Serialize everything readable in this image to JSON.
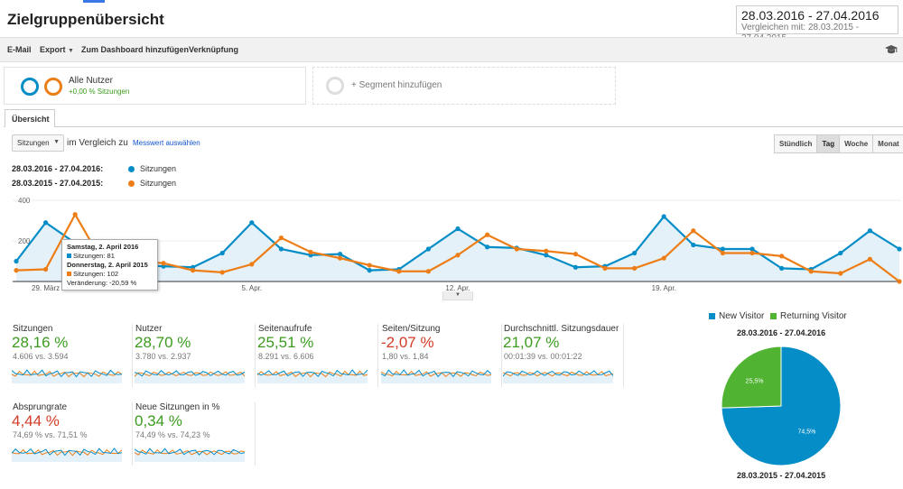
{
  "page": {
    "title": "Zielgruppenübersicht",
    "date_range": "28.03.2016 - 27.04.2016",
    "compare_prefix": "Vergleichen mit:",
    "compare_range": "28.03.2015 - 27.04.2015"
  },
  "toolbar": {
    "email": "E-Mail",
    "export": "Export",
    "dashboard": "Zum Dashboard hinzufügen",
    "link": "Verknüpfung"
  },
  "segments": {
    "name": "Alle Nutzer",
    "sub": "+0,00 % Sitzungen",
    "add": "+ Segment hinzufügen"
  },
  "tab": {
    "label": "Übersicht"
  },
  "controls": {
    "metric": "Sitzungen",
    "vs_label": "im Vergleich zu",
    "vs_link": "Messwert auswählen",
    "granularity": [
      "Stündlich",
      "Tag",
      "Woche",
      "Monat"
    ],
    "active_granularity": "Tag"
  },
  "legend": {
    "range1": "28.03.2016 - 27.04.2016:",
    "range2": "28.03.2015 - 27.04.2015:",
    "series1": "Sitzungen",
    "series2": "Sitzungen"
  },
  "tooltip": {
    "date1": "Samstag, 2. April 2016",
    "val1": "Sitzungen: 81",
    "date2": "Donnerstag, 2. April 2015",
    "val2": "Sitzungen: 102",
    "change": "Veränderung: -20,59 %"
  },
  "chart_data": {
    "type": "line",
    "ylim": [
      0,
      400
    ],
    "yticks": [
      "400",
      "200"
    ],
    "xticks": [
      {
        "index": 1,
        "label": "29. März"
      },
      {
        "index": 8,
        "label": "5. Apr."
      },
      {
        "index": 15,
        "label": "12. Apr."
      },
      {
        "index": 22,
        "label": "19. Apr."
      }
    ],
    "colors": {
      "series1": "#058dc7",
      "series2": "#ed7e17"
    },
    "series": [
      {
        "name": "Sitzungen",
        "color": "#058dc7",
        "values": [
          100,
          290,
          190,
          180,
          81,
          75,
          70,
          140,
          290,
          160,
          130,
          135,
          55,
          60,
          160,
          260,
          170,
          165,
          130,
          70,
          75,
          140,
          320,
          180,
          160,
          160,
          65,
          60,
          140,
          250,
          160
        ]
      },
      {
        "name": "Sitzungen",
        "color": "#ed7e17",
        "values": [
          55,
          60,
          330,
          80,
          102,
          90,
          55,
          45,
          85,
          215,
          145,
          115,
          80,
          50,
          50,
          130,
          230,
          160,
          150,
          135,
          65,
          65,
          115,
          250,
          140,
          140,
          125,
          50,
          40,
          110,
          0
        ]
      }
    ]
  },
  "scorecards": [
    {
      "label": "Sitzungen",
      "value": "28,16 %",
      "sub": "4.606 vs. 3.594",
      "color": "#3c9b1e"
    },
    {
      "label": "Nutzer",
      "value": "28,70 %",
      "sub": "3.780 vs. 2.937",
      "color": "#3c9b1e"
    },
    {
      "label": "Seitenaufrufe",
      "value": "25,51 %",
      "sub": "8.291 vs. 6.606",
      "color": "#3c9b1e"
    },
    {
      "label": "Seiten/Sitzung",
      "value": "-2,07 %",
      "sub": "1,80 vs. 1,84",
      "color": "#d33c26"
    },
    {
      "label": "Durchschnittl. Sitzungsdauer",
      "value": "21,07 %",
      "sub": "00:01:39 vs. 00:01:22",
      "color": "#3c9b1e"
    },
    {
      "label": "Absprungrate",
      "value": "4,44 %",
      "sub": "74,69 % vs. 71,51 %",
      "color": "#d33c26"
    },
    {
      "label": "Neue Sitzungen in %",
      "value": "0,34 %",
      "sub": "74,49 % vs. 74,23 %",
      "color": "#3c9b1e"
    }
  ],
  "pie": {
    "legend": [
      "New Visitor",
      "Returning Visitor"
    ],
    "colors": [
      "#058dc7",
      "#50b432"
    ],
    "title_top": "28.03.2016 - 27.04.2016",
    "title_bottom": "28.03.2015 - 27.04.2015",
    "chart_data": {
      "type": "pie",
      "labels": [
        "New Visitor",
        "Returning Visitor"
      ],
      "values": [
        74.5,
        25.5
      ],
      "value_labels": [
        "74,5%",
        "25,5%"
      ]
    }
  }
}
